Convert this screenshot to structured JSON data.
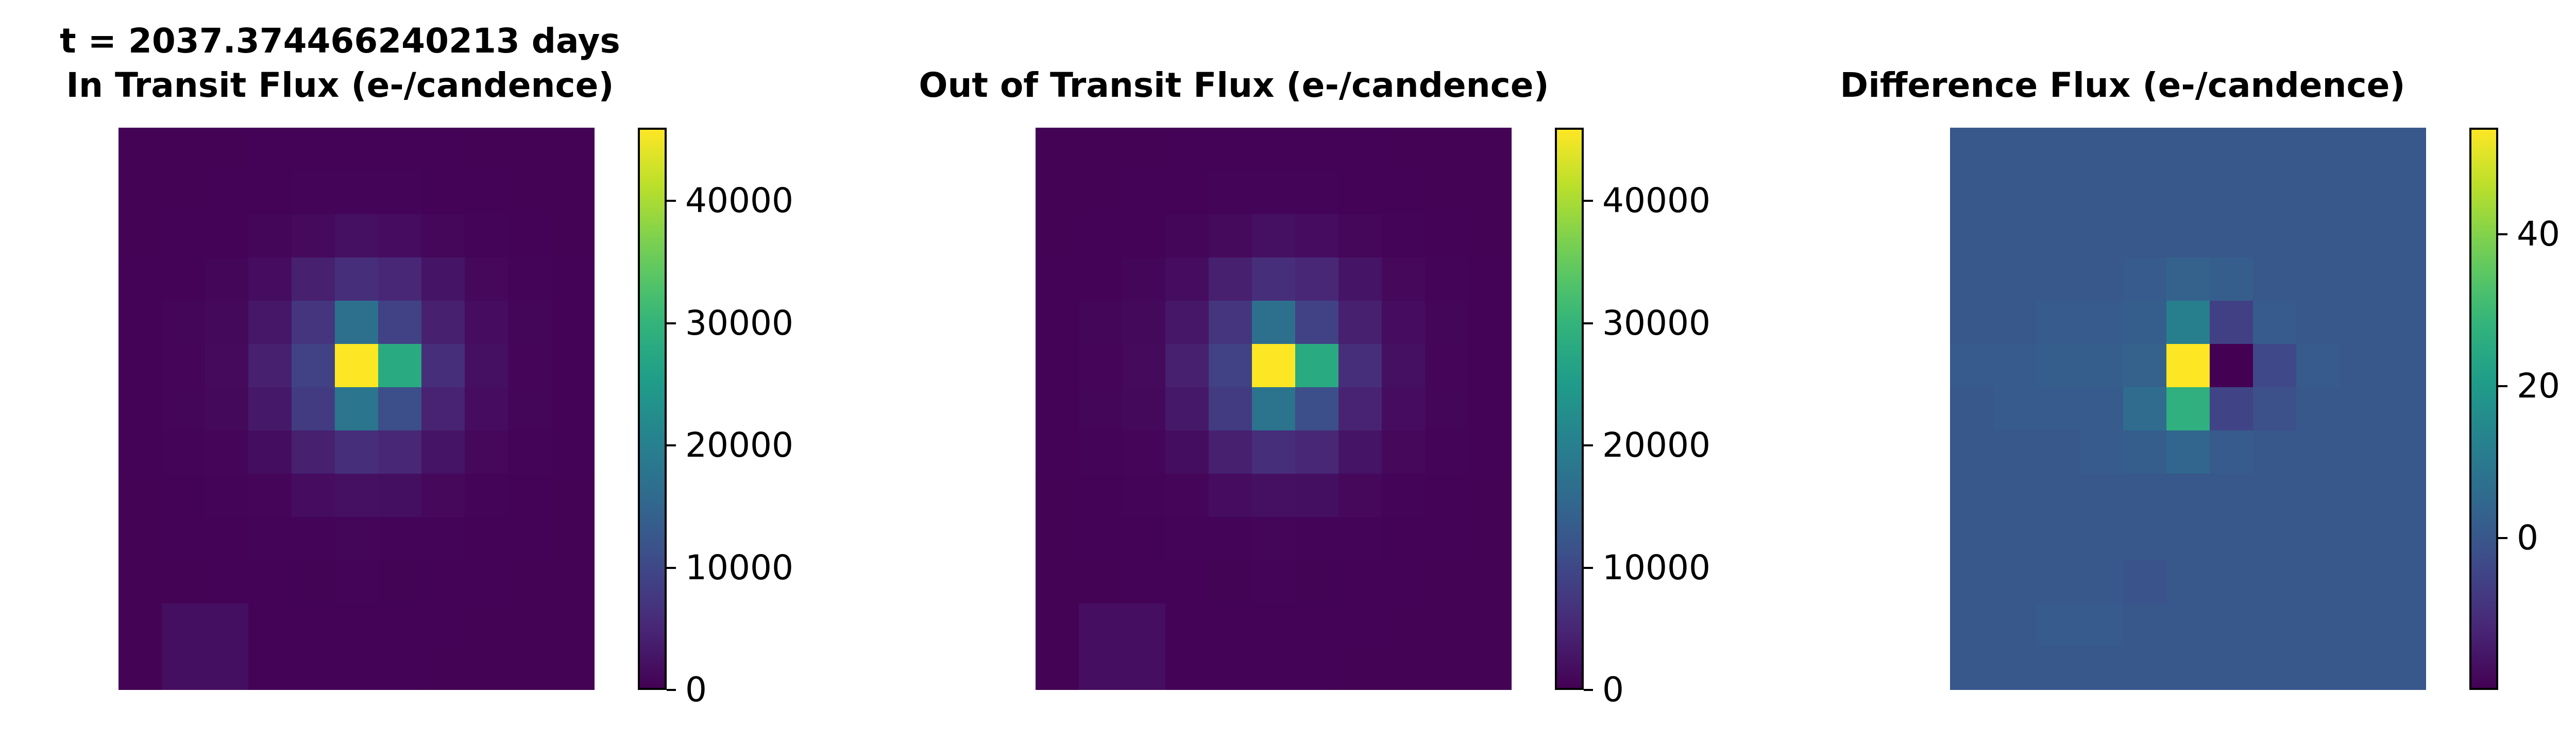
{
  "figure": {
    "panels": [
      {
        "title_lines": [
          "t = 2037.374466240213 days",
          "In Transit Flux (e-/candence)"
        ],
        "colorbar_ticks": [
          "0",
          "10000",
          "20000",
          "30000",
          "40000"
        ]
      },
      {
        "title_lines": [
          "Out of Transit Flux (e-/candence)"
        ],
        "colorbar_ticks": [
          "0",
          "10000",
          "20000",
          "30000",
          "40000"
        ]
      },
      {
        "title_lines": [
          "Difference Flux (e-/candence)"
        ],
        "colorbar_ticks": [
          "0",
          "20",
          "40"
        ]
      }
    ]
  },
  "chart_data": [
    {
      "type": "heatmap",
      "title": "t = 2037.374466240213 days\nIn Transit Flux (e-/candence)",
      "colormap": "viridis",
      "colorbar": {
        "range": [
          0,
          46000
        ],
        "ticks": [
          0,
          10000,
          20000,
          30000,
          40000
        ]
      },
      "grid_size": [
        11,
        13
      ],
      "z": [
        [
          200,
          200,
          200,
          250,
          300,
          300,
          300,
          250,
          200,
          200,
          200
        ],
        [
          200,
          200,
          250,
          300,
          400,
          500,
          400,
          300,
          250,
          200,
          200
        ],
        [
          200,
          250,
          300,
          600,
          1200,
          2000,
          1500,
          800,
          400,
          250,
          200
        ],
        [
          250,
          300,
          600,
          1500,
          4000,
          6000,
          5000,
          2500,
          900,
          400,
          250
        ],
        [
          300,
          600,
          1000,
          2800,
          7000,
          17000,
          9000,
          4000,
          1500,
          600,
          300
        ],
        [
          300,
          700,
          1200,
          4000,
          9000,
          46000,
          28000,
          6000,
          2000,
          700,
          300
        ],
        [
          300,
          600,
          1000,
          3000,
          8000,
          18000,
          11000,
          4500,
          1500,
          600,
          300
        ],
        [
          250,
          400,
          700,
          1600,
          4000,
          6000,
          5000,
          2500,
          900,
          400,
          250
        ],
        [
          200,
          300,
          400,
          700,
          1500,
          2000,
          1800,
          900,
          500,
          300,
          200
        ],
        [
          200,
          250,
          300,
          400,
          500,
          600,
          500,
          400,
          300,
          250,
          200
        ],
        [
          200,
          200,
          250,
          300,
          350,
          400,
          350,
          300,
          250,
          200,
          200
        ],
        [
          200,
          1800,
          1800,
          300,
          300,
          300,
          300,
          250,
          200,
          200,
          200
        ],
        [
          200,
          1800,
          1800,
          250,
          250,
          250,
          250,
          200,
          200,
          200,
          200
        ]
      ]
    },
    {
      "type": "heatmap",
      "title": "Out of Transit Flux (e-/candence)",
      "colormap": "viridis",
      "colorbar": {
        "range": [
          0,
          46000
        ],
        "ticks": [
          0,
          10000,
          20000,
          30000,
          40000
        ]
      },
      "grid_size": [
        11,
        13
      ],
      "z": [
        [
          200,
          200,
          200,
          250,
          300,
          300,
          300,
          250,
          200,
          200,
          200
        ],
        [
          200,
          200,
          250,
          300,
          400,
          500,
          400,
          300,
          250,
          200,
          200
        ],
        [
          200,
          250,
          300,
          600,
          1200,
          2000,
          1500,
          800,
          400,
          250,
          200
        ],
        [
          250,
          300,
          600,
          1500,
          4000,
          6000,
          5000,
          2500,
          900,
          400,
          250
        ],
        [
          300,
          600,
          1000,
          2800,
          7000,
          17000,
          9000,
          4000,
          1500,
          600,
          300
        ],
        [
          300,
          700,
          1200,
          4000,
          9000,
          46000,
          28000,
          6000,
          2000,
          700,
          300
        ],
        [
          300,
          600,
          1000,
          3000,
          8000,
          17500,
          11000,
          4500,
          1500,
          600,
          300
        ],
        [
          250,
          400,
          700,
          1600,
          4000,
          6000,
          5000,
          2500,
          900,
          400,
          250
        ],
        [
          200,
          300,
          400,
          700,
          1500,
          2000,
          1800,
          900,
          500,
          300,
          200
        ],
        [
          200,
          250,
          300,
          400,
          500,
          600,
          500,
          400,
          300,
          250,
          200
        ],
        [
          200,
          200,
          250,
          300,
          350,
          400,
          350,
          300,
          250,
          200,
          200
        ],
        [
          200,
          1700,
          1700,
          300,
          300,
          300,
          300,
          250,
          200,
          200,
          200
        ],
        [
          200,
          1700,
          1700,
          250,
          250,
          250,
          250,
          200,
          200,
          200,
          200
        ]
      ]
    },
    {
      "type": "heatmap",
      "title": "Difference Flux (e-/candence)",
      "colormap": "viridis",
      "colorbar": {
        "range": [
          -20,
          54
        ],
        "ticks": [
          0,
          20,
          40
        ]
      },
      "grid_size": [
        11,
        13
      ],
      "z": [
        [
          0,
          0,
          0,
          0,
          0,
          0,
          0,
          0,
          0,
          0,
          0
        ],
        [
          0,
          0,
          0,
          0,
          0,
          0,
          0,
          0,
          0,
          0,
          0
        ],
        [
          0,
          0,
          0,
          0,
          0,
          0,
          0,
          0,
          0,
          0,
          0
        ],
        [
          0,
          0,
          0,
          0,
          1,
          3,
          2,
          0,
          0,
          0,
          0
        ],
        [
          0,
          0,
          1,
          1,
          2,
          12,
          -6,
          1,
          0,
          0,
          0
        ],
        [
          1,
          1,
          2,
          2,
          3,
          54,
          -20,
          -4,
          1,
          0,
          0
        ],
        [
          0,
          1,
          1,
          1,
          6,
          27,
          -5,
          -2,
          0,
          0,
          0
        ],
        [
          0,
          0,
          0,
          1,
          2,
          4,
          1,
          0,
          0,
          0,
          0
        ],
        [
          0,
          0,
          0,
          0,
          0,
          0,
          0,
          0,
          0,
          0,
          0
        ],
        [
          0,
          0,
          0,
          0,
          0,
          0,
          0,
          0,
          0,
          0,
          0
        ],
        [
          0,
          0,
          0,
          0,
          -1,
          0,
          0,
          0,
          0,
          0,
          0
        ],
        [
          0,
          0,
          1,
          1,
          0,
          0,
          0,
          0,
          0,
          0,
          0
        ],
        [
          0,
          0,
          0,
          0,
          0,
          0,
          0,
          0,
          0,
          0,
          0
        ]
      ]
    }
  ]
}
